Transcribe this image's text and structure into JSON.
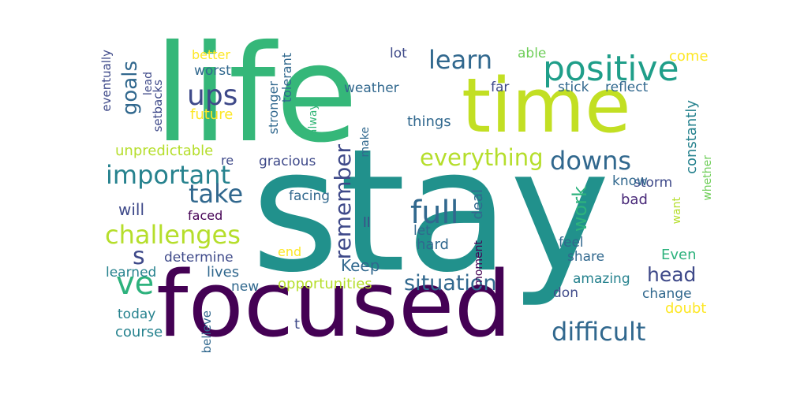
{
  "word_cloud": {
    "colors": {
      "background": "#ffffff",
      "dark_purple": "#440154",
      "purple": "#482878",
      "indigo": "#3e4989",
      "blue": "#31688e",
      "steel_blue": "#26828e",
      "teal": "#1f9e89",
      "green": "#35b779",
      "light_green": "#6ece58",
      "yellow_green": "#b5de2b",
      "yellow": "#fde725"
    },
    "words": [
      {
        "text": "stay",
        "color": "#21918c"
      },
      {
        "text": "life",
        "color": "#35b779"
      },
      {
        "text": "time",
        "color": "#c2df23"
      },
      {
        "text": "focused",
        "color": "#440154"
      },
      {
        "text": "positive",
        "color": "#1f9e89"
      },
      {
        "text": "learn",
        "color": "#31688e"
      },
      {
        "text": "ups",
        "color": "#3e4989"
      },
      {
        "text": "goals",
        "color": "#31688e"
      },
      {
        "text": "important",
        "color": "#26828e"
      },
      {
        "text": "take",
        "color": "#31688e"
      },
      {
        "text": "challenges",
        "color": "#b5de2b"
      },
      {
        "text": "ve",
        "color": "#2db27d"
      },
      {
        "text": "s",
        "color": "#3e4989"
      },
      {
        "text": "remember",
        "color": "#3e4989"
      },
      {
        "text": "full",
        "color": "#31688e"
      },
      {
        "text": "everything",
        "color": "#b5de2b"
      },
      {
        "text": "downs",
        "color": "#31688e"
      },
      {
        "text": "work",
        "color": "#2db27d"
      },
      {
        "text": "situation",
        "color": "#31688e"
      },
      {
        "text": "difficult",
        "color": "#31688e"
      },
      {
        "text": "head",
        "color": "#3e4989"
      },
      {
        "text": "Keep",
        "color": "#31688e"
      },
      {
        "text": "will",
        "color": "#3e4989"
      },
      {
        "text": "eventually",
        "color": "#3e4989"
      },
      {
        "text": "better",
        "color": "#fde725"
      },
      {
        "text": "worst",
        "color": "#31688e"
      },
      {
        "text": "lead",
        "color": "#3e4989"
      },
      {
        "text": "setbacks",
        "color": "#3e4989"
      },
      {
        "text": "stronger",
        "color": "#31688e"
      },
      {
        "text": "tolerant",
        "color": "#31688e"
      },
      {
        "text": "future",
        "color": "#fde725"
      },
      {
        "text": "always",
        "color": "#35b779"
      },
      {
        "text": "weather",
        "color": "#31688e"
      },
      {
        "text": "lot",
        "color": "#3e4989"
      },
      {
        "text": "able",
        "color": "#6ece58"
      },
      {
        "text": "come",
        "color": "#fde725"
      },
      {
        "text": "far",
        "color": "#3e4989"
      },
      {
        "text": "stick",
        "color": "#31688e"
      },
      {
        "text": "reflect",
        "color": "#31688e"
      },
      {
        "text": "things",
        "color": "#31688e"
      },
      {
        "text": "make",
        "color": "#31688e"
      },
      {
        "text": "constantly",
        "color": "#26828e"
      },
      {
        "text": "whether",
        "color": "#6ece58"
      },
      {
        "text": "unpredictable",
        "color": "#b5de2b"
      },
      {
        "text": "re",
        "color": "#3e4989"
      },
      {
        "text": "gracious",
        "color": "#3e4989"
      },
      {
        "text": "storm",
        "color": "#3e4989"
      },
      {
        "text": "know",
        "color": "#31688e"
      },
      {
        "text": "faced",
        "color": "#440154"
      },
      {
        "text": "facing",
        "color": "#31688e"
      },
      {
        "text": "deal",
        "color": "#31688e"
      },
      {
        "text": "ll",
        "color": "#3e4989"
      },
      {
        "text": "let",
        "color": "#31688e"
      },
      {
        "text": "want",
        "color": "#b5de2b"
      },
      {
        "text": "bad",
        "color": "#482878"
      },
      {
        "text": "feel",
        "color": "#31688e"
      },
      {
        "text": "hard",
        "color": "#31688e"
      },
      {
        "text": "moment",
        "color": "#440154"
      },
      {
        "text": "share",
        "color": "#31688e"
      },
      {
        "text": "Even",
        "color": "#2db27d"
      },
      {
        "text": "determine",
        "color": "#3e4989"
      },
      {
        "text": "end",
        "color": "#fde725"
      },
      {
        "text": "learned",
        "color": "#26828e"
      },
      {
        "text": "lives",
        "color": "#31688e"
      },
      {
        "text": "opportunities",
        "color": "#b5de2b"
      },
      {
        "text": "new",
        "color": "#31688e"
      },
      {
        "text": "amazing",
        "color": "#26828e"
      },
      {
        "text": "don",
        "color": "#3e4989"
      },
      {
        "text": "change",
        "color": "#31688e"
      },
      {
        "text": "today",
        "color": "#26828e"
      },
      {
        "text": "believe",
        "color": "#31688e"
      },
      {
        "text": "t",
        "color": "#3e4989"
      },
      {
        "text": "doubt",
        "color": "#fde725"
      },
      {
        "text": "course",
        "color": "#26828e"
      }
    ]
  }
}
